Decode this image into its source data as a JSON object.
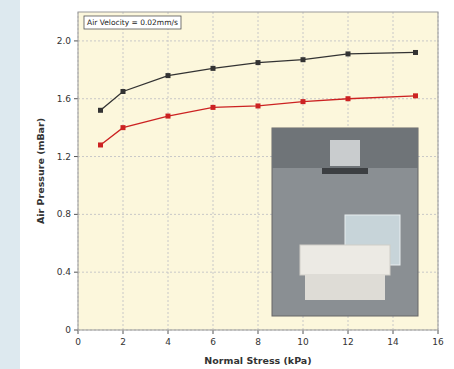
{
  "chart_data": {
    "type": "line",
    "annotations": [
      "Air Velocity = 0.02mm/s"
    ],
    "x_label": "Normal Stress (kPa)",
    "y_label": "Air Pressure (mBar)",
    "x": [
      1,
      2,
      4,
      6,
      8,
      10,
      12,
      15
    ],
    "series": [
      {
        "color": "#333333",
        "marker": "square",
        "values": [
          1.52,
          1.65,
          1.76,
          1.81,
          1.85,
          1.87,
          1.91,
          1.92
        ]
      },
      {
        "color": "#cc2222",
        "marker": "square",
        "values": [
          1.28,
          1.4,
          1.48,
          1.54,
          1.55,
          1.58,
          1.6,
          1.62
        ]
      }
    ],
    "xlim": [
      0,
      16
    ],
    "xticks": [
      0,
      2,
      4,
      6,
      8,
      10,
      12,
      14,
      16
    ],
    "ylim": [
      0,
      2.2
    ],
    "yticks": [
      0,
      0.4,
      0.8,
      1.2,
      1.6,
      {
        "value": 2.0,
        "label": "2.0"
      }
    ],
    "grid": true
  }
}
